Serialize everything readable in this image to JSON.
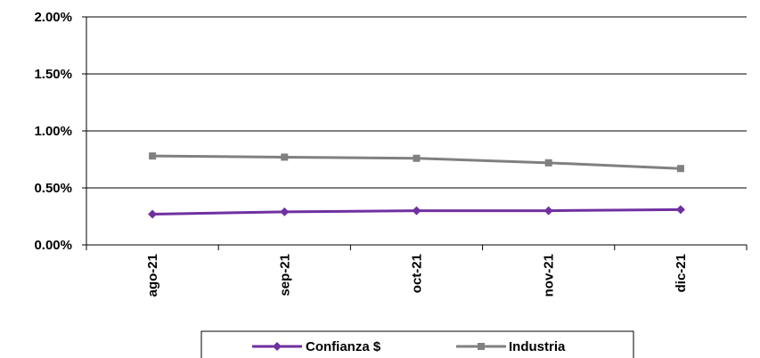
{
  "chart_data": {
    "type": "line",
    "categories": [
      "ago-21",
      "sep-21",
      "oct-21",
      "nov-21",
      "dic-21"
    ],
    "series": [
      {
        "name": "Confianza $",
        "color": "#7030a0",
        "marker": "diamond",
        "values": [
          0.27,
          0.29,
          0.3,
          0.3,
          0.31
        ]
      },
      {
        "name": "Industria",
        "color": "#808080",
        "marker": "square",
        "values": [
          0.78,
          0.77,
          0.76,
          0.72,
          0.67
        ]
      }
    ],
    "ylim": [
      0,
      2
    ],
    "yticks": [
      "0.00%",
      "0.50%",
      "1.00%",
      "1.50%",
      "2.00%"
    ],
    "ytick_values": [
      0,
      0.5,
      1,
      1.5,
      2
    ],
    "gridlines": "horizontal",
    "legend_position": "bottom",
    "title": "",
    "xlabel": "",
    "ylabel": ""
  }
}
